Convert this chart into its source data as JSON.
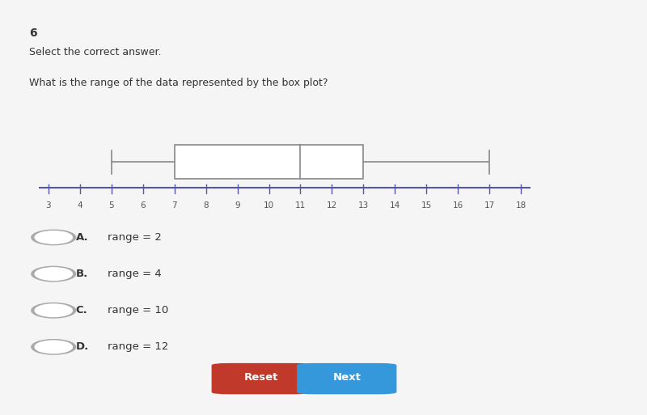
{
  "question_number": "6",
  "instruction": "Select the correct answer.",
  "question": "What is the range of the data represented by the box plot?",
  "boxplot": {
    "whisker_low": 5,
    "q1": 7,
    "median": 11,
    "q3": 13,
    "whisker_high": 17,
    "axis_min": 3,
    "axis_max": 18,
    "axis_ticks": [
      3,
      4,
      5,
      6,
      7,
      8,
      9,
      10,
      11,
      12,
      13,
      14,
      15,
      16,
      17,
      18
    ]
  },
  "choices": [
    {
      "letter": "A.",
      "text": "range = 2"
    },
    {
      "letter": "B.",
      "text": "range = 4"
    },
    {
      "letter": "C.",
      "text": "range = 10"
    },
    {
      "letter": "D.",
      "text": "range = 12"
    }
  ],
  "buttons": [
    {
      "label": "Reset",
      "color": "#c0392b"
    },
    {
      "label": "Next",
      "color": "#3498db"
    }
  ],
  "bg_color": "#f5f5f5",
  "card_color": "#ffffff",
  "boxplot_color": "#cccccc",
  "boxplot_line_color": "#888888",
  "axis_line_color": "#5555aa",
  "tick_label_color": "#555555",
  "question_text_color": "#333333",
  "choice_letter_color": "#333333",
  "radio_color": "#aaaaaa"
}
